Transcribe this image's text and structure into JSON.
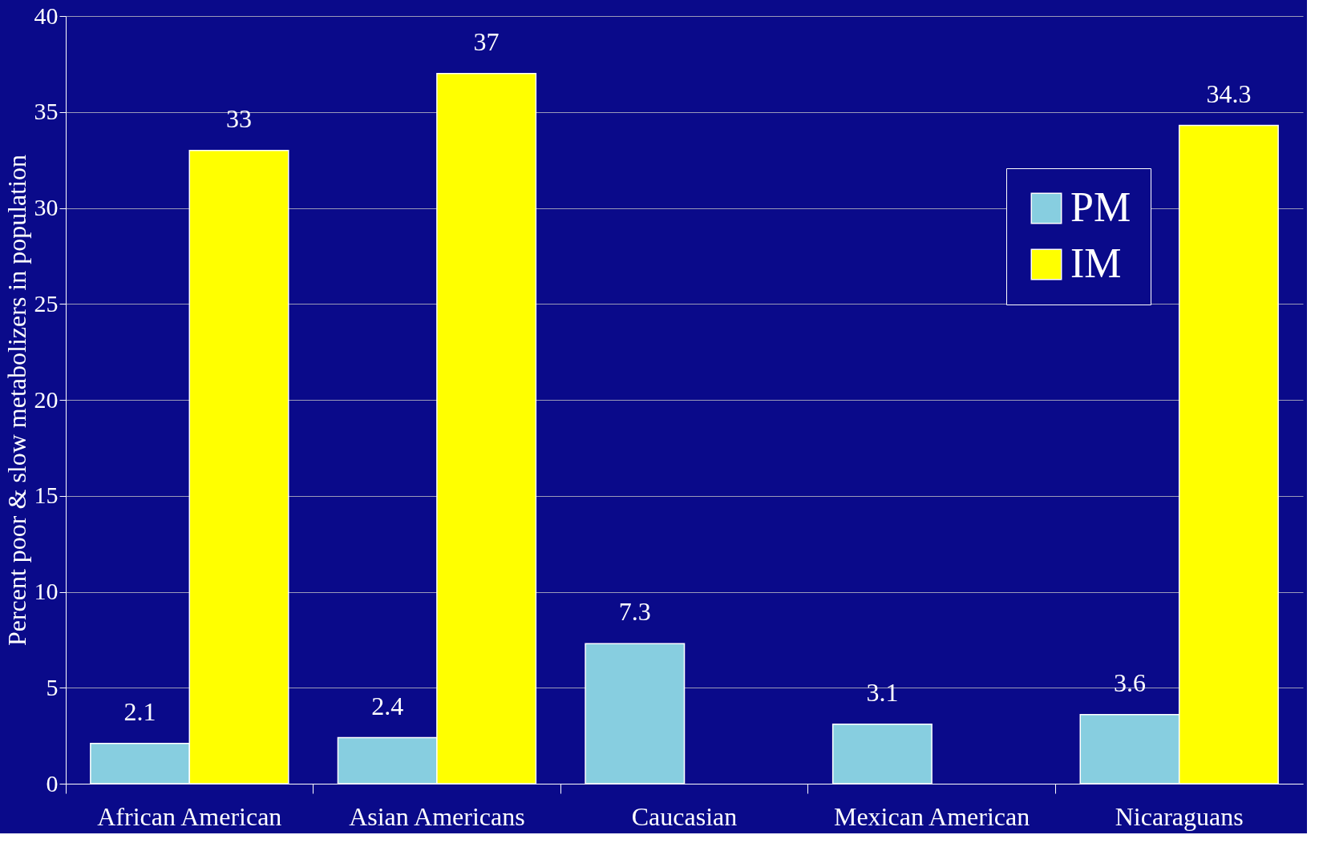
{
  "chart_data": {
    "type": "bar",
    "ylabel": "Percent poor & slow metabolizers in population",
    "categories": [
      "African American",
      "Asian Americans",
      "Caucasian",
      "Mexican American",
      "Nicaraguans"
    ],
    "series": [
      {
        "name": "PM",
        "color": "#87cee0",
        "values": [
          2.1,
          2.4,
          7.3,
          3.1,
          3.6
        ]
      },
      {
        "name": "IM",
        "color": "#ffff00",
        "values": [
          33,
          37,
          null,
          null,
          34.3
        ]
      }
    ],
    "ylim": [
      0,
      40
    ],
    "yticks": [
      0,
      5,
      10,
      15,
      20,
      25,
      30,
      35,
      40
    ],
    "grid": "y",
    "legend": "top right",
    "data_labels": true
  }
}
